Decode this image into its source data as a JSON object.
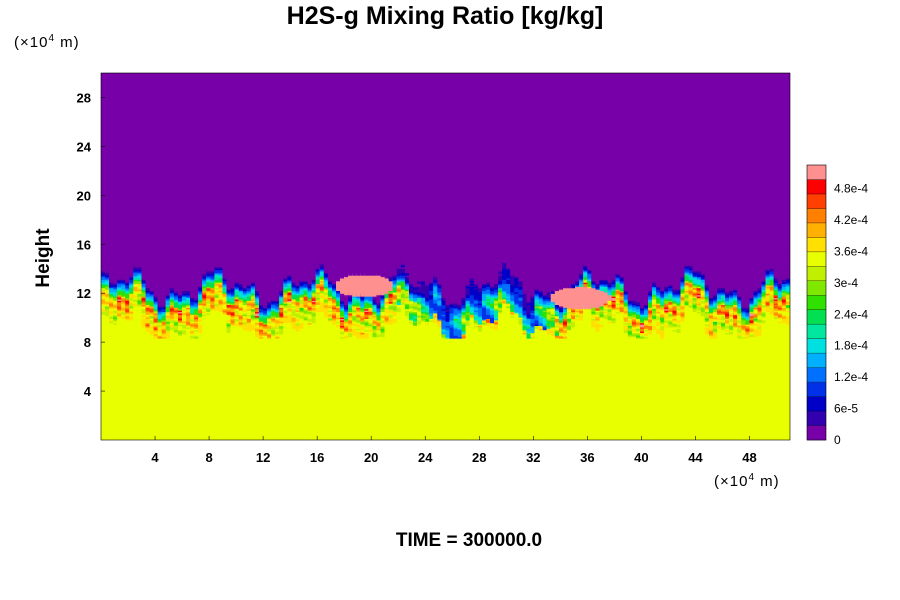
{
  "chart_data": {
    "type": "heatmap",
    "title": "H2S-g Mixing Ratio [kg/kg]",
    "ylabel": "Height",
    "xlabel": "",
    "x_unit": "(×10",
    "x_unit_exp": "4",
    "x_unit_tail": " m)",
    "y_unit": "(×10",
    "y_unit_exp": "4",
    "y_unit_tail": " m)",
    "xlim": [
      0,
      51
    ],
    "ylim": [
      0,
      30
    ],
    "x_ticks": [
      4,
      8,
      12,
      16,
      20,
      24,
      28,
      32,
      36,
      40,
      44,
      48
    ],
    "y_ticks": [
      4,
      8,
      12,
      16,
      20,
      24,
      28
    ],
    "colorbar": {
      "range": [
        0,
        0.000525
      ],
      "labels": [
        {
          "value": 0,
          "label": "0"
        },
        {
          "value": 6e-05,
          "label": "6e-5"
        },
        {
          "value": 0.00012,
          "label": "1.2e-4"
        },
        {
          "value": 0.00018,
          "label": "1.8e-4"
        },
        {
          "value": 0.00024,
          "label": "2.4e-4"
        },
        {
          "value": 0.0003,
          "label": "3e-4"
        },
        {
          "value": 0.00036,
          "label": "3.6e-4"
        },
        {
          "value": 0.00042,
          "label": "4.2e-4"
        },
        {
          "value": 0.00048,
          "label": "4.8e-4"
        }
      ],
      "colors": [
        "#7700a8",
        "#3300b0",
        "#0000c8",
        "#0030e8",
        "#0070ff",
        "#00b0ff",
        "#00e0e0",
        "#00e8a0",
        "#00e050",
        "#30e000",
        "#80e800",
        "#c0f000",
        "#e8ff00",
        "#ffe000",
        "#ffb000",
        "#ff8000",
        "#ff4000",
        "#ff0000",
        "#ff9090"
      ]
    },
    "field_summary": {
      "upper_value": 0,
      "lower_value": 0.00035,
      "interface_height_mean": 13,
      "high_patches": [
        {
          "x_center": 19.5,
          "y_center": 12.8,
          "value": 0.0005
        },
        {
          "x_center": 35.5,
          "y_center": 11.8,
          "value": 0.0005
        }
      ]
    },
    "time_label": "TIME = 300000.0"
  }
}
